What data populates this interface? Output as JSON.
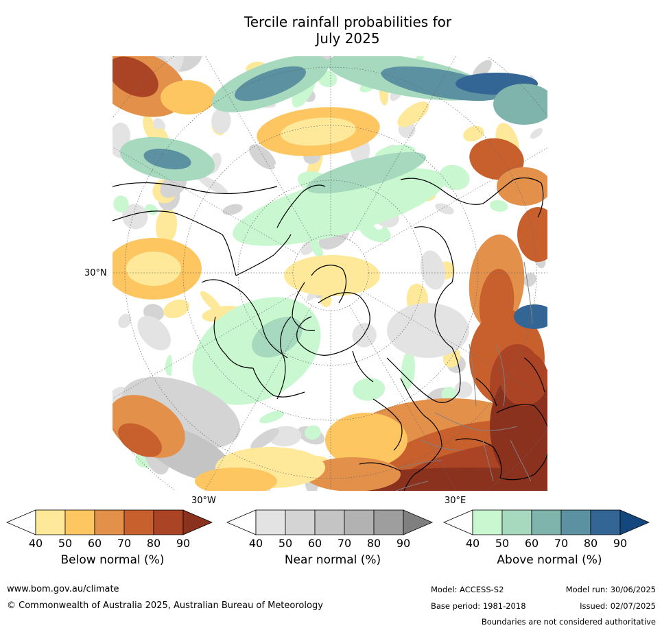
{
  "title": {
    "line1": "Tercile rainfall probabilities for",
    "line2": "July 2025"
  },
  "map": {
    "lat_label": "30°N",
    "lon_label_west": "30°W",
    "lon_label_east": "30°E",
    "colors": {
      "below": [
        "#fee99a",
        "#fdc660",
        "#e3904b",
        "#c8602e",
        "#aa4424",
        "#8b321f"
      ],
      "near": [
        "#e3e3e3",
        "#d4d4d4",
        "#c4c4c4",
        "#b2b2b2",
        "#9e9e9e",
        "#7f7f7f"
      ],
      "above": [
        "#c8f7d0",
        "#a6d9bd",
        "#7fb4ad",
        "#5c91a1",
        "#336595",
        "#15477f"
      ],
      "land_outline": "#000000",
      "border_outline": "#808080"
    }
  },
  "colorbars": [
    {
      "label": "Below normal (%)",
      "ticks": [
        "40",
        "50",
        "60",
        "70",
        "80",
        "90"
      ],
      "palette": "below"
    },
    {
      "label": "Near normal (%)",
      "ticks": [
        "40",
        "50",
        "60",
        "70",
        "80",
        "90"
      ],
      "palette": "near"
    },
    {
      "label": "Above normal (%)",
      "ticks": [
        "40",
        "50",
        "60",
        "70",
        "80",
        "90"
      ],
      "palette": "above"
    }
  ],
  "footer": {
    "website": "www.bom.gov.au/climate",
    "copyright": "© Commonwealth of Australia 2025, Australian Bureau of Meteorology",
    "model": "Model: ACCESS-S2",
    "base_period": "Base period: 1981-2018",
    "model_run": "Model run: 30/06/2025",
    "issued": "Issued: 02/07/2025",
    "disclaimer": "Boundaries are not considered authoritative"
  }
}
